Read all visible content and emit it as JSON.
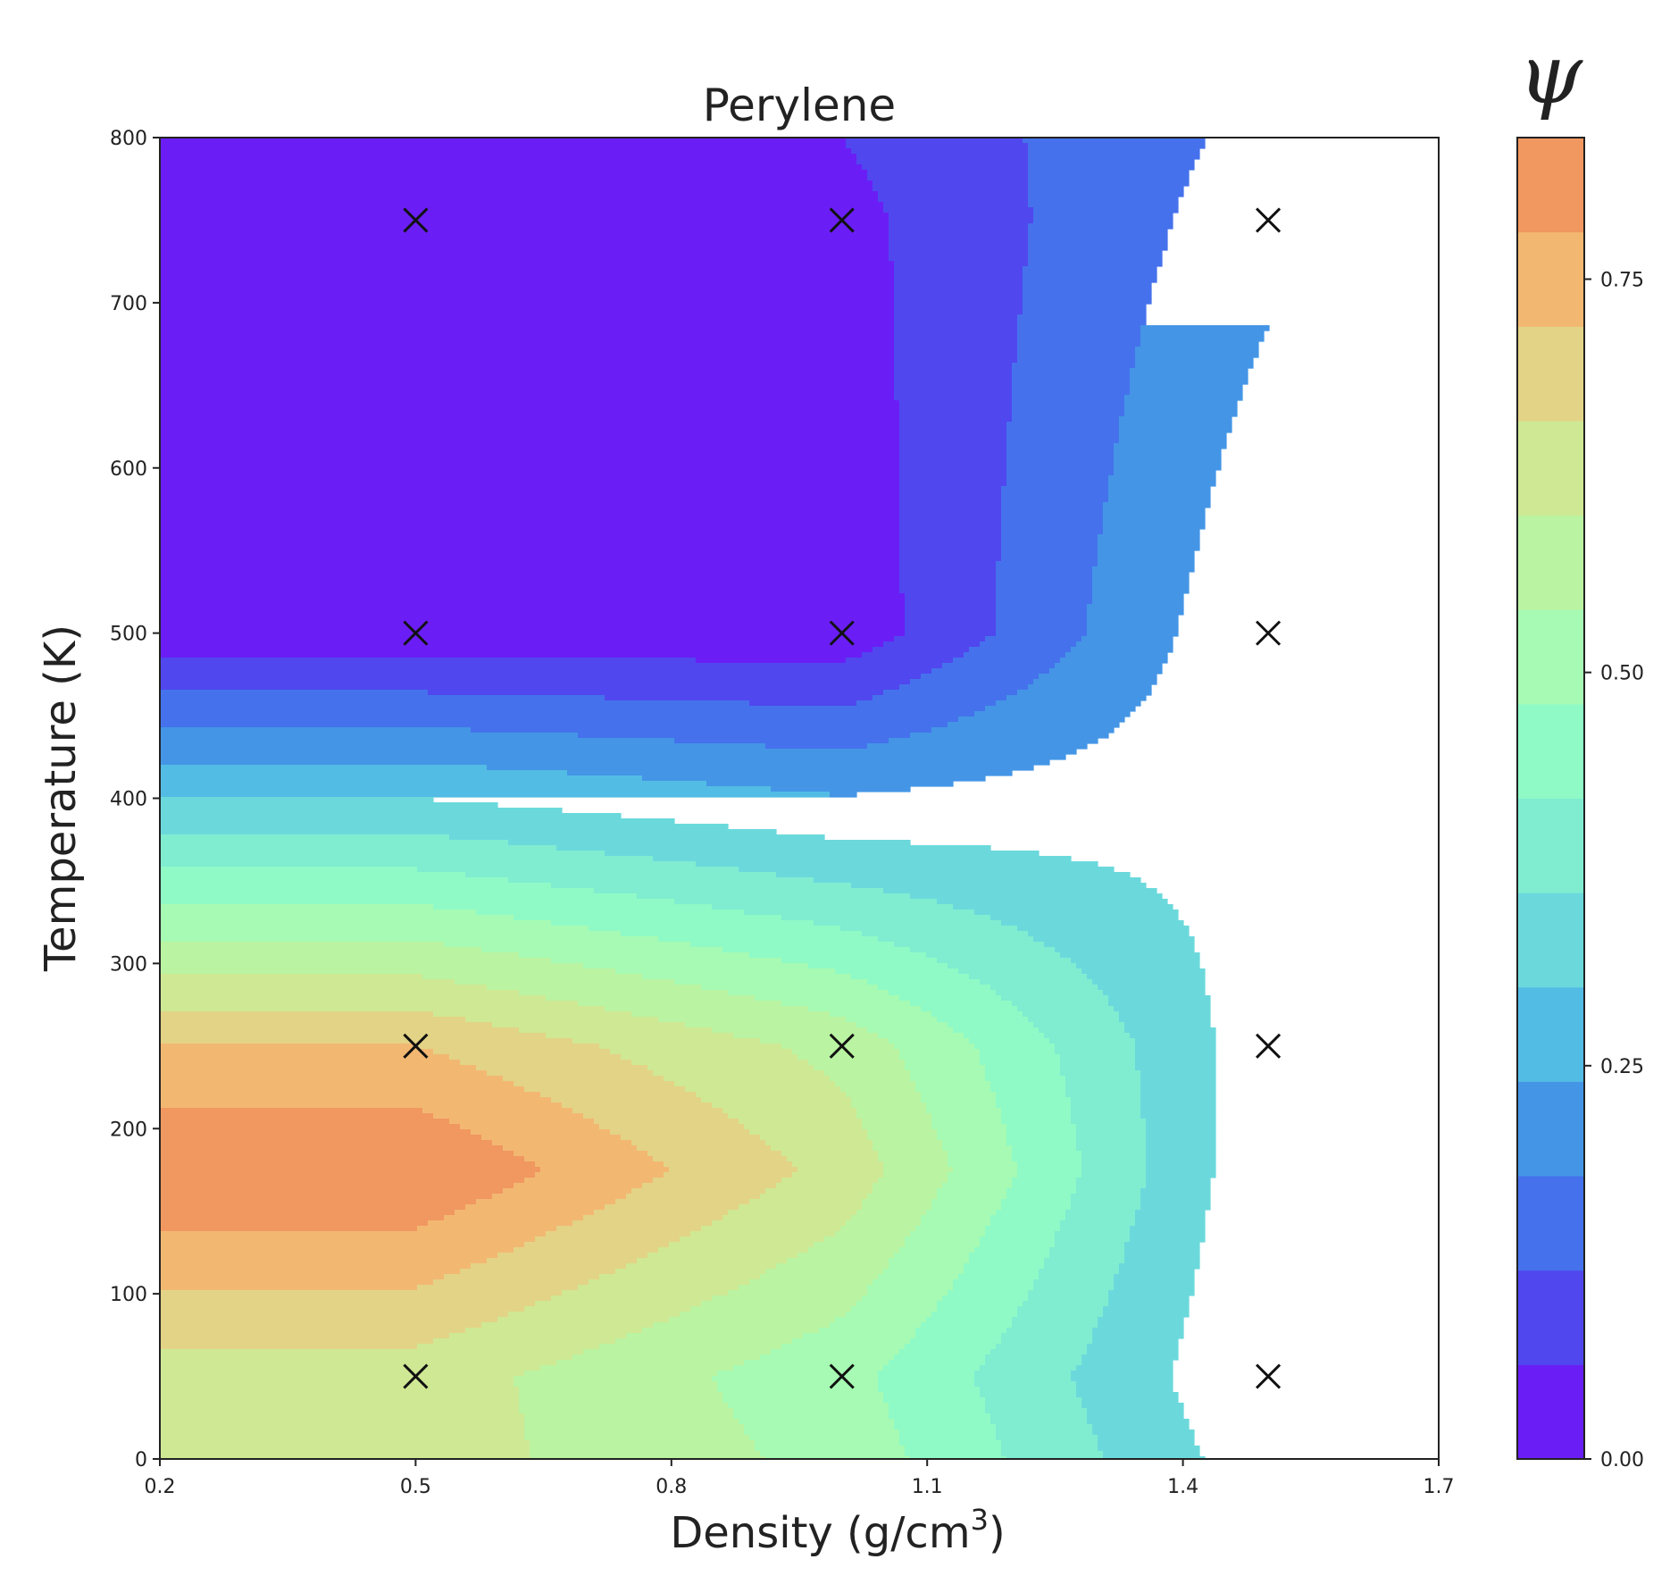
{
  "chart_data": {
    "type": "filled-contour",
    "title": "Perylene",
    "xlabel": "Density (g/cm",
    "xlabel_superscript": "3",
    "xlabel_suffix": ")",
    "ylabel": "Temperature (K)",
    "xlim": [
      0.2,
      1.7
    ],
    "ylim": [
      0,
      800
    ],
    "xticks": [
      0.2,
      0.5,
      0.8,
      1.1,
      1.4,
      1.7
    ],
    "xtick_labels": [
      "0.2",
      "0.5",
      "0.8",
      "1.1",
      "1.4",
      "1.7"
    ],
    "yticks": [
      0,
      100,
      200,
      300,
      400,
      500,
      600,
      700,
      800
    ],
    "ytick_labels": [
      "0",
      "100",
      "200",
      "300",
      "400",
      "500",
      "600",
      "700",
      "800"
    ],
    "grid": false,
    "sample_points": {
      "marker": "x",
      "x": [
        0.5,
        1.0,
        1.5
      ],
      "y": [
        50,
        250,
        500,
        750
      ]
    },
    "psi_grid": {
      "x": [
        0.2,
        0.5,
        1.0,
        1.5,
        1.7
      ],
      "y": [
        0,
        50,
        175,
        250,
        500,
        750,
        800
      ],
      "values": [
        [
          0.63,
          0.63,
          0.52,
          0.26,
          0.26
        ],
        [
          0.63,
          0.63,
          0.5,
          0.24,
          0.24
        ],
        [
          0.84,
          0.84,
          0.64,
          0.25,
          0.25
        ],
        [
          0.72,
          0.72,
          0.58,
          0.26,
          0.26
        ],
        [
          0.02,
          0.02,
          0.02,
          0.3,
          0.3
        ],
        [
          0.02,
          0.02,
          0.04,
          0.22,
          0.22
        ],
        [
          0.02,
          0.02,
          0.06,
          0.2,
          0.2
        ]
      ]
    },
    "colorbar": {
      "title": "ψ",
      "range": [
        0.0,
        0.84
      ],
      "levels": [
        0.0,
        0.06,
        0.12,
        0.18,
        0.24,
        0.3,
        0.36,
        0.42,
        0.48,
        0.54,
        0.6,
        0.66,
        0.72,
        0.78,
        0.84
      ],
      "colors": [
        "#6a1ef5",
        "#5047ef",
        "#4572ec",
        "#4495e6",
        "#53bce4",
        "#6bd9dc",
        "#80edd1",
        "#8ffac6",
        "#a6fab3",
        "#baf3a1",
        "#cfe894",
        "#e3d386",
        "#f2b872",
        "#f19760"
      ],
      "ticks": [
        0.0,
        0.25,
        0.5,
        0.75
      ],
      "tick_labels": [
        "0.00",
        "0.25",
        "0.50",
        "0.75"
      ]
    }
  }
}
